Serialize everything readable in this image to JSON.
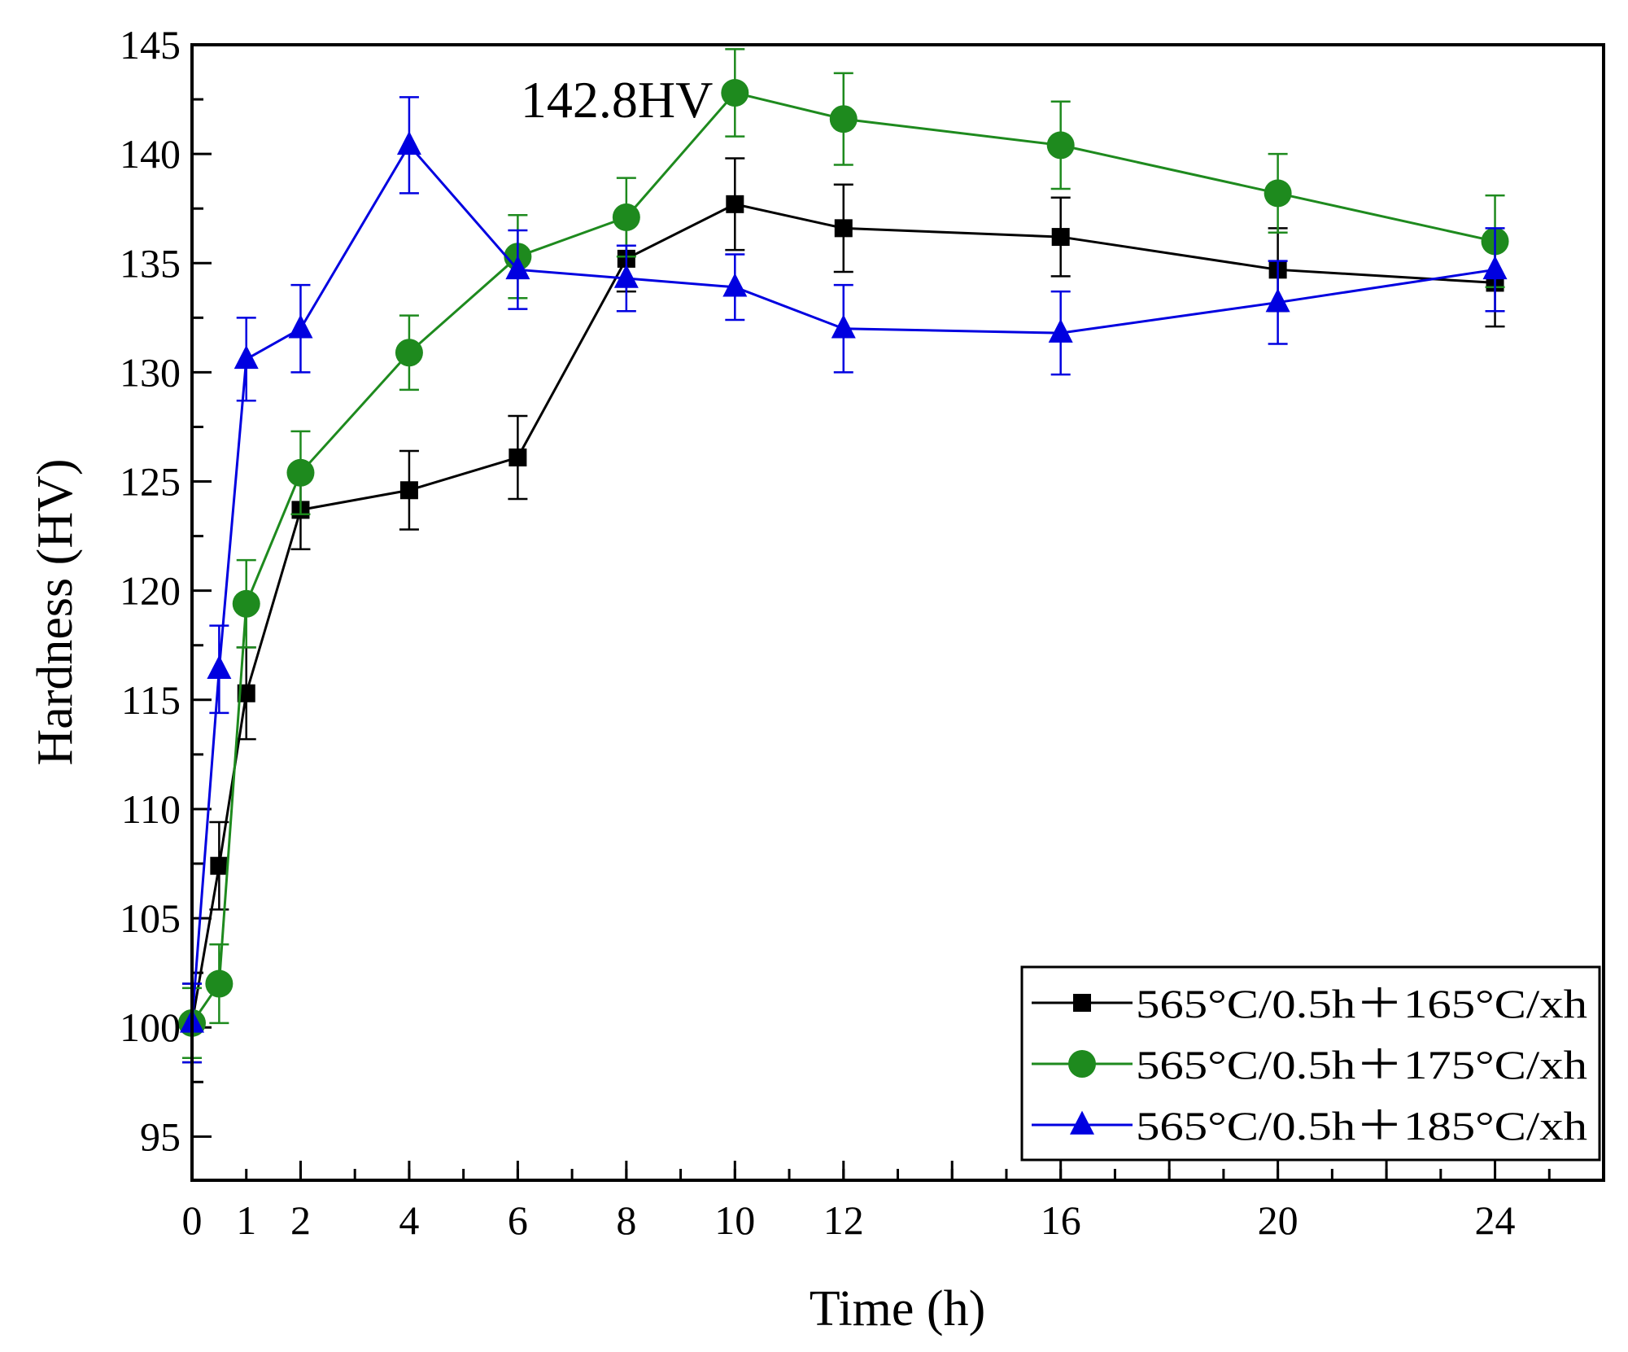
{
  "chart_data": {
    "type": "line",
    "title": "",
    "xlabel": "Time (h)",
    "ylabel": "Hardness (HV)",
    "xlim": [
      0,
      26
    ],
    "ylim": [
      93,
      145
    ],
    "xticks": [
      0,
      1,
      2,
      4,
      6,
      8,
      10,
      12,
      16,
      20,
      24
    ],
    "yticks": [
      95,
      100,
      105,
      110,
      115,
      120,
      125,
      130,
      135,
      140,
      145
    ],
    "legend_position": "bottom-right",
    "annotation": {
      "text": "142.8HV",
      "x": 10,
      "y": 142.8
    },
    "series": [
      {
        "name": "565°C/0.5h＋165°C/xh",
        "color": "#000000",
        "marker": "square",
        "x": [
          0,
          0.5,
          1,
          2,
          4,
          6,
          8,
          10,
          12,
          16,
          20,
          24
        ],
        "y": [
          100.2,
          107.4,
          115.3,
          123.7,
          124.6,
          126.1,
          135.2,
          137.7,
          136.6,
          136.2,
          134.7,
          134.1
        ],
        "err": [
          1.8,
          2.0,
          2.1,
          1.8,
          1.8,
          1.9,
          1.5,
          2.1,
          2.0,
          1.8,
          1.9,
          2.0
        ]
      },
      {
        "name": "565°C/0.5h＋175°C/xh",
        "color": "#1e8a1e",
        "marker": "circle",
        "x": [
          0,
          0.5,
          1,
          2,
          4,
          6,
          8,
          10,
          12,
          16,
          20,
          24
        ],
        "y": [
          100.2,
          102.0,
          119.4,
          125.4,
          130.9,
          135.3,
          137.1,
          142.8,
          141.6,
          140.4,
          138.2,
          136.0
        ],
        "err": [
          1.6,
          1.8,
          2.0,
          1.9,
          1.7,
          1.9,
          1.8,
          2.0,
          2.1,
          2.0,
          1.8,
          2.1
        ]
      },
      {
        "name": "565°C/0.5h＋185°C/xh",
        "color": "#0000e0",
        "marker": "triangle",
        "x": [
          0,
          0.5,
          1,
          2,
          4,
          6,
          8,
          10,
          12,
          16,
          20,
          24
        ],
        "y": [
          100.2,
          116.4,
          130.6,
          132.0,
          140.4,
          134.7,
          134.3,
          133.9,
          132.0,
          131.8,
          133.2,
          134.7
        ],
        "err": [
          1.8,
          2.0,
          1.9,
          2.0,
          2.2,
          1.8,
          1.5,
          1.5,
          2.0,
          1.9,
          1.9,
          1.9
        ]
      }
    ]
  }
}
